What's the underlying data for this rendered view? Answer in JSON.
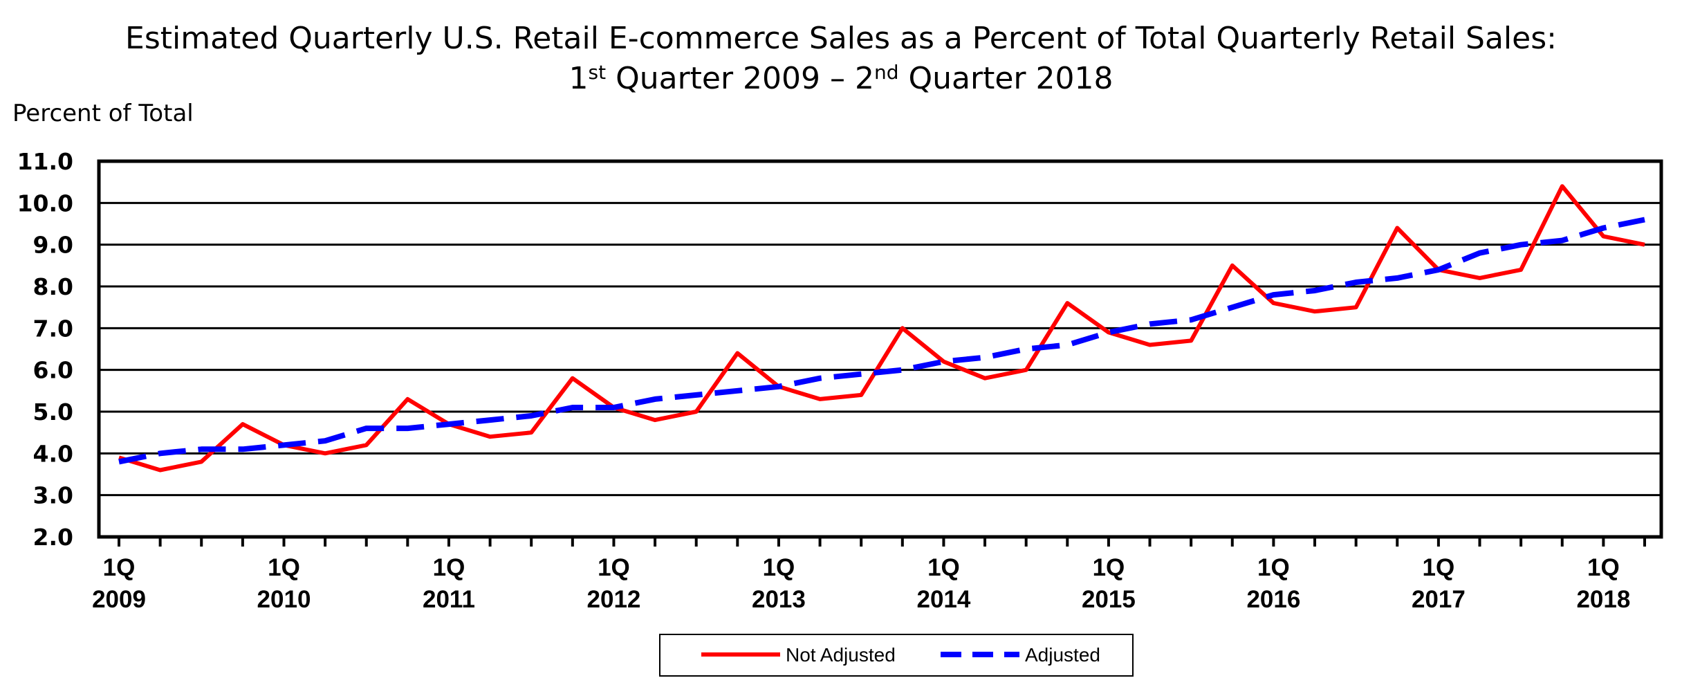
{
  "chart_data": {
    "type": "line",
    "title_line1": "Estimated Quarterly U.S. Retail E-commerce Sales as a Percent of Total Quarterly Retail Sales:",
    "title_line2": {
      "q1_num": "1",
      "q1_sup": "st",
      "q1_rest": " Quarter 2009 – ",
      "q2_num": "2",
      "q2_sup": "nd",
      "q2_rest": " Quarter 2018"
    },
    "ylabel": "Percent of Total",
    "ylim": [
      2.0,
      11.0
    ],
    "yticks": [
      "2.0",
      "3.0",
      "4.0",
      "5.0",
      "6.0",
      "7.0",
      "8.0",
      "9.0",
      "10.0",
      "11.0"
    ],
    "grid": true,
    "xtick_labels": [
      {
        "quarter": "1Q",
        "year": "2009"
      },
      {
        "quarter": "1Q",
        "year": "2010"
      },
      {
        "quarter": "1Q",
        "year": "2011"
      },
      {
        "quarter": "1Q",
        "year": "2012"
      },
      {
        "quarter": "1Q",
        "year": "2013"
      },
      {
        "quarter": "1Q",
        "year": "2014"
      },
      {
        "quarter": "1Q",
        "year": "2015"
      },
      {
        "quarter": "1Q",
        "year": "2016"
      },
      {
        "quarter": "1Q",
        "year": "2017"
      },
      {
        "quarter": "1Q",
        "year": "2018"
      }
    ],
    "x": [
      "1Q 2009",
      "2Q 2009",
      "3Q 2009",
      "4Q 2009",
      "1Q 2010",
      "2Q 2010",
      "3Q 2010",
      "4Q 2010",
      "1Q 2011",
      "2Q 2011",
      "3Q 2011",
      "4Q 2011",
      "1Q 2012",
      "2Q 2012",
      "3Q 2012",
      "4Q 2012",
      "1Q 2013",
      "2Q 2013",
      "3Q 2013",
      "4Q 2013",
      "1Q 2014",
      "2Q 2014",
      "3Q 2014",
      "4Q 2014",
      "1Q 2015",
      "2Q 2015",
      "3Q 2015",
      "4Q 2015",
      "1Q 2016",
      "2Q 2016",
      "3Q 2016",
      "4Q 2016",
      "1Q 2017",
      "2Q 2017",
      "3Q 2017",
      "4Q 2017",
      "1Q 2018",
      "2Q 2018"
    ],
    "series": [
      {
        "name": "Not Adjusted",
        "color": "#ff0000",
        "style": "solid",
        "values": [
          3.9,
          3.6,
          3.8,
          4.7,
          4.2,
          4.0,
          4.2,
          5.3,
          4.7,
          4.4,
          4.5,
          5.8,
          5.1,
          4.8,
          5.0,
          6.4,
          5.6,
          5.3,
          5.4,
          7.0,
          6.2,
          5.8,
          6.0,
          7.6,
          6.9,
          6.6,
          6.7,
          8.5,
          7.6,
          7.4,
          7.5,
          9.4,
          8.4,
          8.2,
          8.4,
          10.4,
          9.2,
          9.0
        ]
      },
      {
        "name": "Adjusted",
        "color": "#0000ff",
        "style": "dashed",
        "values": [
          3.8,
          4.0,
          4.1,
          4.1,
          4.2,
          4.3,
          4.6,
          4.6,
          4.7,
          4.8,
          4.9,
          5.1,
          5.1,
          5.3,
          5.4,
          5.5,
          5.6,
          5.8,
          5.9,
          6.0,
          6.2,
          6.3,
          6.5,
          6.6,
          6.9,
          7.1,
          7.2,
          7.5,
          7.8,
          7.9,
          8.1,
          8.2,
          8.4,
          8.8,
          9.0,
          9.1,
          9.4,
          9.6
        ]
      }
    ],
    "legend_position": "bottom-center"
  }
}
